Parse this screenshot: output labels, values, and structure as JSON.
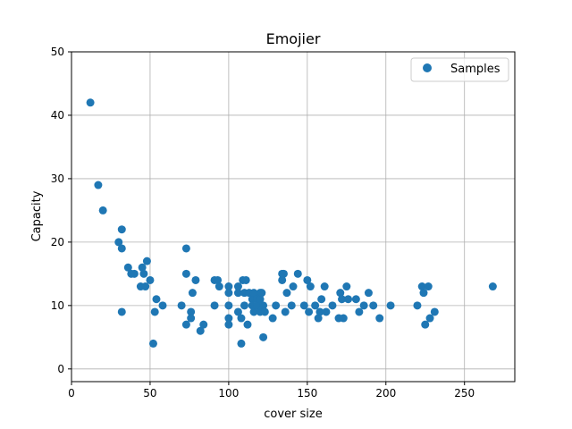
{
  "chart_data": {
    "type": "scatter",
    "title": "Emojier",
    "xlabel": "cover size",
    "ylabel": "Capacity",
    "xlim": [
      0,
      282
    ],
    "ylim": [
      -2,
      50
    ],
    "xticks": [
      0,
      50,
      100,
      150,
      200,
      250
    ],
    "yticks": [
      0,
      10,
      20,
      30,
      40,
      50
    ],
    "grid": true,
    "legend": {
      "position": "top-right",
      "entries": [
        "Samples"
      ]
    },
    "marker_color": "#1f77b4",
    "series": [
      {
        "name": "Samples",
        "points": [
          [
            12,
            42
          ],
          [
            17,
            29
          ],
          [
            20,
            25
          ],
          [
            30,
            20
          ],
          [
            32,
            22
          ],
          [
            32,
            19
          ],
          [
            32,
            9
          ],
          [
            36,
            16
          ],
          [
            38,
            15
          ],
          [
            40,
            15
          ],
          [
            44,
            13
          ],
          [
            45,
            16
          ],
          [
            46,
            15
          ],
          [
            47,
            13
          ],
          [
            48,
            17
          ],
          [
            50,
            14
          ],
          [
            52,
            4
          ],
          [
            53,
            9
          ],
          [
            54,
            11
          ],
          [
            58,
            10
          ],
          [
            70,
            10
          ],
          [
            73,
            19
          ],
          [
            73,
            15
          ],
          [
            73,
            7
          ],
          [
            76,
            9
          ],
          [
            76,
            8
          ],
          [
            77,
            12
          ],
          [
            79,
            14
          ],
          [
            82,
            6
          ],
          [
            84,
            7
          ],
          [
            91,
            14
          ],
          [
            91,
            10
          ],
          [
            93,
            14
          ],
          [
            94,
            13
          ],
          [
            100,
            13
          ],
          [
            100,
            12
          ],
          [
            100,
            10
          ],
          [
            100,
            8
          ],
          [
            100,
            7
          ],
          [
            106,
            13
          ],
          [
            106,
            12
          ],
          [
            106,
            9
          ],
          [
            108,
            8
          ],
          [
            108,
            4
          ],
          [
            109,
            14
          ],
          [
            110,
            12
          ],
          [
            110,
            10
          ],
          [
            111,
            14
          ],
          [
            112,
            7
          ],
          [
            113,
            12
          ],
          [
            115,
            11
          ],
          [
            115,
            10
          ],
          [
            116,
            12
          ],
          [
            116,
            9
          ],
          [
            118,
            11
          ],
          [
            118,
            10
          ],
          [
            120,
            12
          ],
          [
            120,
            11
          ],
          [
            120,
            9
          ],
          [
            121,
            12
          ],
          [
            122,
            10
          ],
          [
            122,
            5
          ],
          [
            123,
            9
          ],
          [
            128,
            8
          ],
          [
            130,
            10
          ],
          [
            134,
            15
          ],
          [
            134,
            14
          ],
          [
            135,
            15
          ],
          [
            136,
            9
          ],
          [
            137,
            12
          ],
          [
            140,
            10
          ],
          [
            141,
            13
          ],
          [
            144,
            15
          ],
          [
            148,
            10
          ],
          [
            150,
            14
          ],
          [
            151,
            9
          ],
          [
            152,
            13
          ],
          [
            155,
            10
          ],
          [
            157,
            8
          ],
          [
            158,
            9
          ],
          [
            159,
            11
          ],
          [
            161,
            13
          ],
          [
            162,
            9
          ],
          [
            166,
            10
          ],
          [
            170,
            8
          ],
          [
            171,
            12
          ],
          [
            172,
            11
          ],
          [
            173,
            8
          ],
          [
            175,
            13
          ],
          [
            176,
            11
          ],
          [
            181,
            11
          ],
          [
            183,
            9
          ],
          [
            186,
            10
          ],
          [
            189,
            12
          ],
          [
            192,
            10
          ],
          [
            196,
            8
          ],
          [
            203,
            10
          ],
          [
            220,
            10
          ],
          [
            223,
            13
          ],
          [
            224,
            12
          ],
          [
            225,
            7
          ],
          [
            227,
            13
          ],
          [
            228,
            8
          ],
          [
            231,
            9
          ],
          [
            268,
            13
          ]
        ]
      }
    ]
  }
}
